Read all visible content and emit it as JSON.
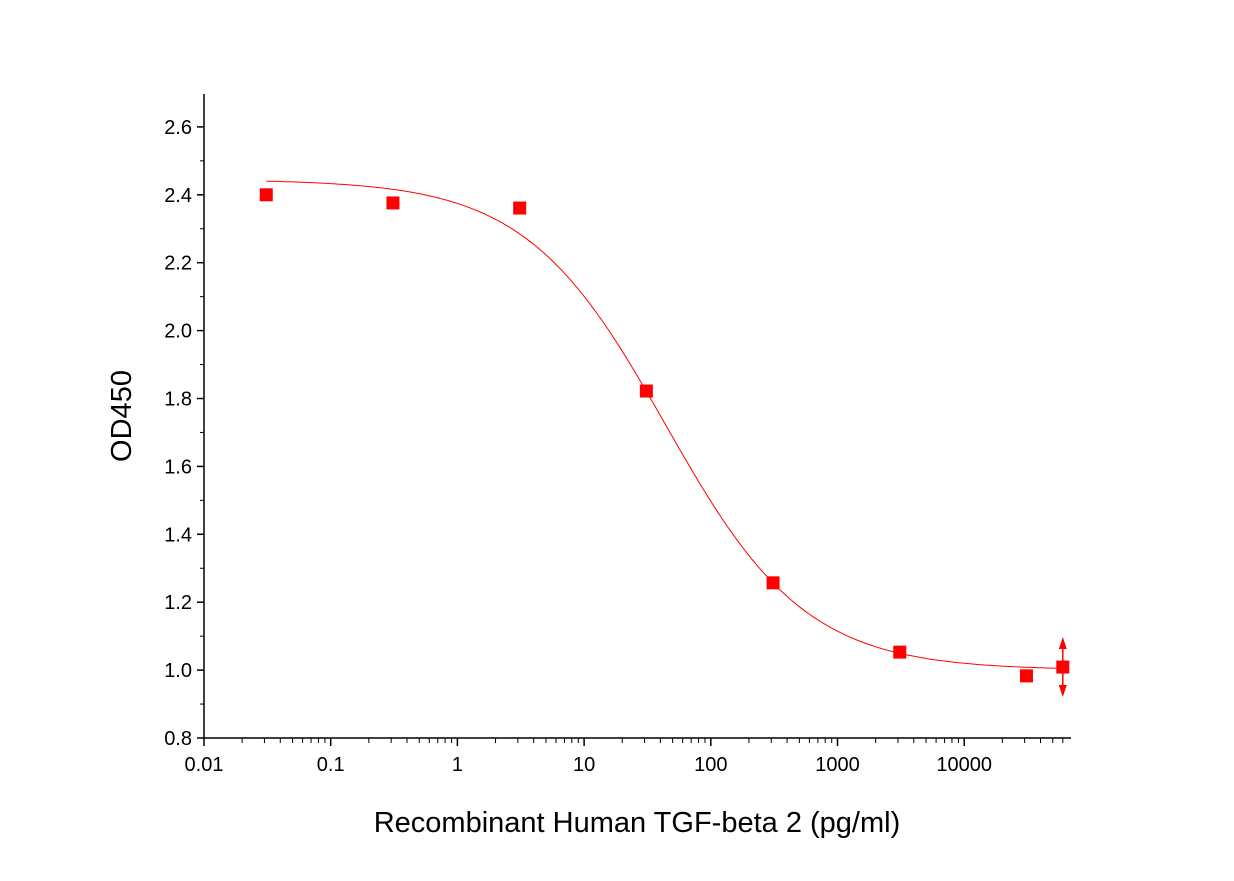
{
  "chart_data": {
    "type": "scatter",
    "title": "",
    "xlabel": "Recombinant Human TGF-beta 2 (pg/ml)",
    "ylabel": "OD450",
    "x_scale": "log",
    "xlim": [
      0.01,
      70000
    ],
    "ylim": [
      0.8,
      2.7
    ],
    "x_ticks": [
      "0.01",
      "0.1",
      "1",
      "10",
      "100",
      "1000",
      "10000"
    ],
    "y_ticks": [
      "0.8",
      "1.0",
      "1.2",
      "1.4",
      "1.6",
      "1.8",
      "2.0",
      "2.2",
      "2.4",
      "2.6"
    ],
    "grid": false,
    "legend": "none",
    "color": "#ff0000",
    "series": [
      {
        "marker": "square",
        "x": [
          0.031,
          0.31,
          3.1,
          31,
          310,
          3100,
          31000,
          60000
        ],
        "y": [
          2.4,
          2.376,
          2.361,
          1.822,
          1.257,
          1.053,
          0.983,
          1.009
        ],
        "error_bar_points": [
          60000
        ]
      }
    ],
    "fit": {
      "model": "4PL",
      "top": 2.445,
      "bottom": 1.0,
      "ec50": 44,
      "hill": 0.785,
      "x_range": [
        0.031,
        60000
      ]
    }
  }
}
